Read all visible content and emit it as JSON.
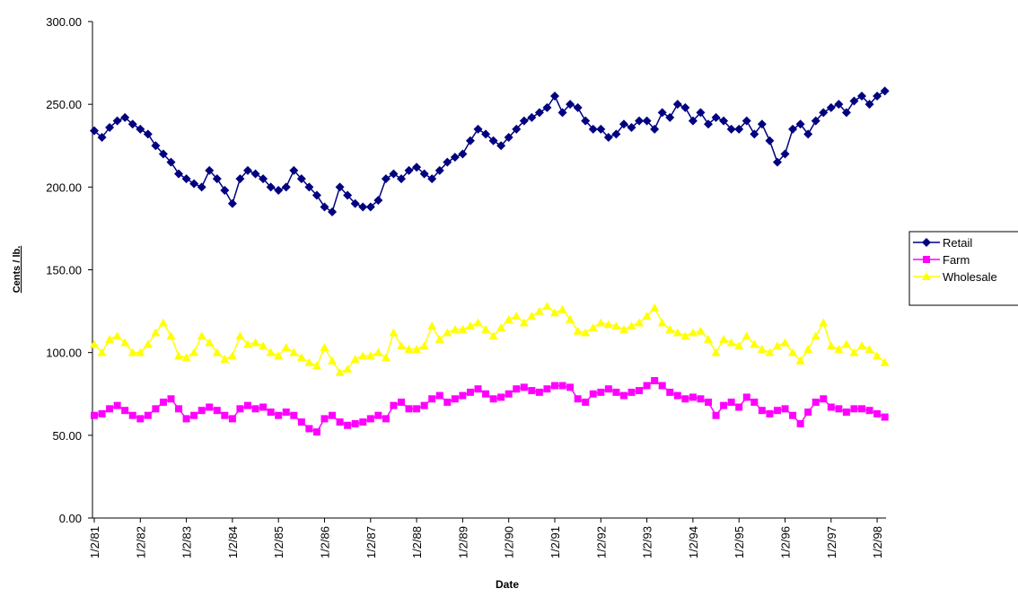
{
  "chart_data": {
    "type": "line",
    "x_label": "Date",
    "y_label": "Cents / lb.",
    "ylim": [
      0,
      300
    ],
    "yticks": [
      {
        "value": 0,
        "label": "0.00"
      },
      {
        "value": 50,
        "label": "50.00"
      },
      {
        "value": 100,
        "label": "100.00"
      },
      {
        "value": 150,
        "label": "150.00"
      },
      {
        "value": 200,
        "label": "200.00"
      },
      {
        "value": 250,
        "label": "250.00"
      },
      {
        "value": 300,
        "label": "300.00"
      }
    ],
    "grid": false,
    "legend": "right",
    "categories": [
      "1/2/81",
      null,
      null,
      null,
      null,
      null,
      "1/2/82",
      null,
      null,
      null,
      null,
      null,
      "1/2/83",
      null,
      null,
      null,
      null,
      null,
      "1/2/84",
      null,
      null,
      null,
      null,
      null,
      "1/2/85",
      null,
      null,
      null,
      null,
      null,
      "1/2/86",
      null,
      null,
      null,
      null,
      null,
      "1/2/87",
      null,
      null,
      null,
      null,
      null,
      "1/2/88",
      null,
      null,
      null,
      null,
      null,
      "1/2/89",
      null,
      null,
      null,
      null,
      null,
      "1/2/90",
      null,
      null,
      null,
      null,
      null,
      "1/2/91",
      null,
      null,
      null,
      null,
      null,
      "1/2/92",
      null,
      null,
      null,
      null,
      null,
      "1/2/93",
      null,
      null,
      null,
      null,
      null,
      "1/2/94",
      null,
      null,
      null,
      null,
      null,
      "1/2/95",
      null,
      null,
      null,
      null,
      null,
      "1/2/96",
      null,
      null,
      null,
      null,
      null,
      "1/2/97",
      null,
      null,
      null,
      null,
      null,
      "1/2/98",
      null
    ],
    "series": [
      {
        "name": "Retail",
        "color": "#000080",
        "marker": "diamond",
        "values": [
          234,
          230,
          236,
          240,
          242,
          238,
          235,
          232,
          225,
          220,
          215,
          208,
          205,
          202,
          200,
          210,
          205,
          198,
          190,
          205,
          210,
          208,
          205,
          200,
          198,
          200,
          210,
          205,
          200,
          195,
          188,
          185,
          200,
          195,
          190,
          188,
          188,
          192,
          205,
          208,
          205,
          210,
          212,
          208,
          205,
          210,
          215,
          218,
          220,
          228,
          235,
          232,
          228,
          225,
          230,
          235,
          240,
          242,
          245,
          248,
          255,
          245,
          250,
          248,
          240,
          235,
          235,
          230,
          232,
          238,
          236,
          240,
          240,
          235,
          245,
          242,
          250,
          248,
          240,
          245,
          238,
          242,
          240,
          235,
          235,
          240,
          232,
          238,
          228,
          215,
          220,
          235,
          238,
          232,
          240,
          245,
          248,
          250,
          245,
          252,
          255,
          250,
          255,
          258
        ]
      },
      {
        "name": "Farm",
        "color": "#ff00ff",
        "marker": "square",
        "values": [
          62,
          63,
          66,
          68,
          65,
          62,
          60,
          62,
          66,
          70,
          72,
          66,
          60,
          62,
          65,
          67,
          65,
          62,
          60,
          66,
          68,
          66,
          67,
          64,
          62,
          64,
          62,
          58,
          54,
          52,
          60,
          62,
          58,
          56,
          57,
          58,
          60,
          62,
          60,
          68,
          70,
          66,
          66,
          68,
          72,
          74,
          70,
          72,
          74,
          76,
          78,
          75,
          72,
          73,
          75,
          78,
          79,
          77,
          76,
          78,
          80,
          80,
          79,
          72,
          70,
          75,
          76,
          78,
          76,
          74,
          76,
          77,
          80,
          83,
          80,
          76,
          74,
          72,
          73,
          72,
          70,
          62,
          68,
          70,
          67,
          73,
          70,
          65,
          63,
          65,
          66,
          62,
          57,
          64,
          70,
          72,
          67,
          66,
          64,
          66,
          66,
          65,
          63,
          61
        ]
      },
      {
        "name": "Wholesale",
        "color": "#ffff00",
        "marker": "triangle",
        "values": [
          105,
          100,
          108,
          110,
          106,
          100,
          100,
          105,
          112,
          118,
          110,
          98,
          97,
          100,
          110,
          106,
          100,
          96,
          98,
          110,
          105,
          106,
          104,
          100,
          98,
          103,
          100,
          97,
          94,
          92,
          103,
          95,
          88,
          90,
          96,
          98,
          98,
          100,
          97,
          112,
          104,
          102,
          102,
          104,
          116,
          108,
          112,
          114,
          114,
          116,
          118,
          114,
          110,
          115,
          120,
          122,
          118,
          122,
          125,
          128,
          124,
          126,
          120,
          113,
          112,
          115,
          118,
          117,
          116,
          114,
          116,
          118,
          122,
          127,
          118,
          114,
          112,
          110,
          112,
          113,
          108,
          100,
          108,
          106,
          104,
          110,
          105,
          102,
          100,
          104,
          106,
          100,
          95,
          102,
          110,
          118,
          104,
          102,
          105,
          100,
          104,
          102,
          98,
          94
        ]
      }
    ]
  }
}
